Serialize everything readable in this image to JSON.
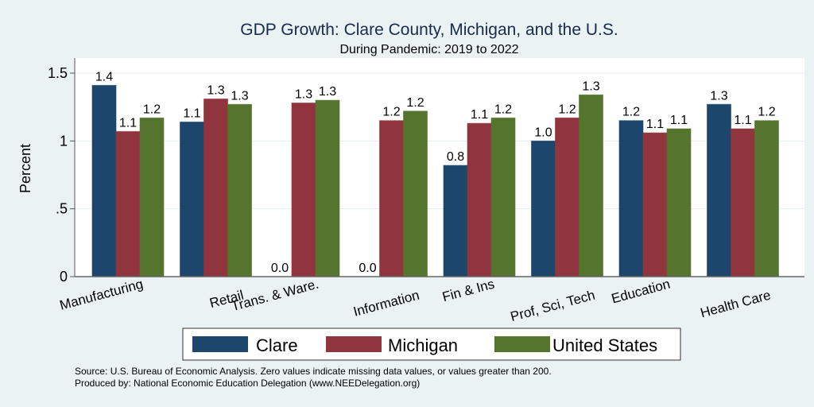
{
  "chart_data": {
    "type": "bar",
    "title": "GDP Growth: Clare County, Michigan, and the U.S.",
    "subtitle": "During Pandemic: 2019 to 2022",
    "xlabel": "",
    "ylabel": "Percent",
    "ylim": [
      0,
      1.6
    ],
    "yticks": [
      0,
      0.5,
      1,
      1.5
    ],
    "ytick_labels": [
      "0",
      ".5",
      "1",
      "1.5"
    ],
    "grid": true,
    "legend_position": "bottom",
    "categories": [
      "Manufacturing",
      "Retail",
      "Trans. & Ware.",
      "Information",
      "Fin & Ins",
      "Prof, Sci, Tech",
      "Education",
      "Health Care"
    ],
    "series": [
      {
        "name": "Clare",
        "color": "#1c466c",
        "values": [
          1.41,
          1.14,
          0,
          0,
          0.82,
          1.0,
          1.15,
          1.27
        ],
        "labels": [
          "1.4",
          "1.1",
          "0.0",
          "0.0",
          "0.8",
          "1.0",
          "1.2",
          "1.3"
        ]
      },
      {
        "name": "Michigan",
        "color": "#90353d",
        "values": [
          1.07,
          1.31,
          1.28,
          1.15,
          1.13,
          1.17,
          1.06,
          1.09
        ],
        "labels": [
          "1.1",
          "1.3",
          "1.3",
          "1.2",
          "1.1",
          "1.2",
          "1.1",
          "1.1"
        ]
      },
      {
        "name": "United States",
        "color": "#55752f",
        "values": [
          1.17,
          1.27,
          1.3,
          1.22,
          1.17,
          1.34,
          1.09,
          1.15
        ],
        "labels": [
          "1.2",
          "1.3",
          "1.3",
          "1.2",
          "1.2",
          "1.3",
          "1.1",
          "1.2"
        ]
      }
    ],
    "notes": [
      "Source: U.S. Bureau of Economic Analysis. Zero values indicate missing data values, or values greater than 200.",
      "Produced by: National Economic Education Delegation (www.NEEDelegation.org)"
    ]
  }
}
